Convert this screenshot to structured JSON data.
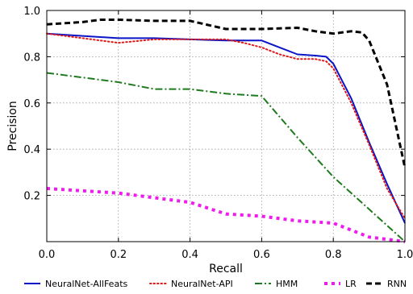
{
  "chart_data": {
    "type": "line",
    "title": "",
    "xlabel": "Recall",
    "ylabel": "Precision",
    "xlim": [
      0.0,
      1.0
    ],
    "ylim": [
      0.0,
      1.0
    ],
    "xticks": [
      "0.0",
      "0.2",
      "0.4",
      "0.6",
      "0.8",
      "1.0"
    ],
    "yticks": [
      "0.2",
      "0.4",
      "0.6",
      "0.8",
      "1.0"
    ],
    "grid": true,
    "legend_position": "bottom",
    "series": [
      {
        "name": "NeuralNet-AllFeats",
        "color": "#0a14c8",
        "style": "solid",
        "x": [
          0.0,
          0.1,
          0.2,
          0.3,
          0.4,
          0.5,
          0.6,
          0.65,
          0.7,
          0.75,
          0.78,
          0.8,
          0.85,
          0.9,
          0.95,
          1.0
        ],
        "y": [
          0.9,
          0.89,
          0.88,
          0.88,
          0.875,
          0.87,
          0.87,
          0.84,
          0.81,
          0.805,
          0.8,
          0.77,
          0.62,
          0.43,
          0.25,
          0.08
        ]
      },
      {
        "name": "NeuralNet-API",
        "color": "#e01818",
        "style": "dotted",
        "x": [
          0.0,
          0.1,
          0.2,
          0.3,
          0.4,
          0.5,
          0.55,
          0.6,
          0.65,
          0.7,
          0.75,
          0.78,
          0.8,
          0.85,
          0.9,
          0.95,
          1.0
        ],
        "y": [
          0.9,
          0.88,
          0.86,
          0.875,
          0.875,
          0.875,
          0.86,
          0.84,
          0.81,
          0.79,
          0.79,
          0.78,
          0.75,
          0.6,
          0.42,
          0.23,
          0.1
        ]
      },
      {
        "name": "HMM",
        "color": "#1e7a1e",
        "style": "dashdot",
        "x": [
          0.0,
          0.1,
          0.2,
          0.3,
          0.4,
          0.5,
          0.6,
          0.7,
          0.8,
          0.9,
          1.0
        ],
        "y": [
          0.73,
          0.71,
          0.69,
          0.66,
          0.66,
          0.64,
          0.63,
          0.45,
          0.28,
          0.14,
          0.0
        ]
      },
      {
        "name": "LR",
        "color": "#ee1aee",
        "style": "dotted-thick",
        "x": [
          0.0,
          0.1,
          0.2,
          0.3,
          0.4,
          0.5,
          0.6,
          0.7,
          0.8,
          0.85,
          0.9,
          1.0
        ],
        "y": [
          0.23,
          0.22,
          0.21,
          0.19,
          0.17,
          0.12,
          0.11,
          0.09,
          0.08,
          0.05,
          0.02,
          0.0
        ]
      },
      {
        "name": "RNN",
        "color": "#000000",
        "style": "dashed",
        "x": [
          0.0,
          0.1,
          0.15,
          0.2,
          0.3,
          0.4,
          0.5,
          0.6,
          0.7,
          0.75,
          0.8,
          0.85,
          0.88,
          0.9,
          0.95,
          1.0
        ],
        "y": [
          0.94,
          0.95,
          0.96,
          0.96,
          0.955,
          0.955,
          0.92,
          0.92,
          0.925,
          0.91,
          0.9,
          0.91,
          0.905,
          0.87,
          0.68,
          0.32
        ]
      }
    ]
  }
}
